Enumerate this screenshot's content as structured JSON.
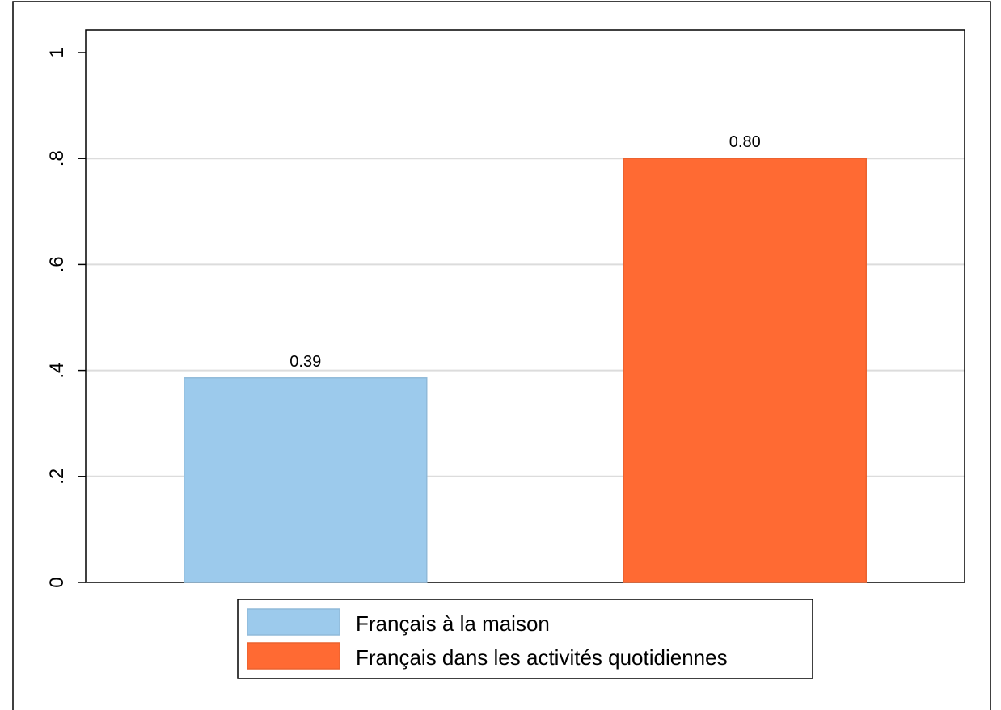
{
  "chart_data": {
    "type": "bar",
    "categories": [
      "Français à la maison",
      "Français dans les activités quotidiennes"
    ],
    "values": [
      0.386,
      0.8
    ],
    "data_labels": [
      "0.39",
      "0.80"
    ],
    "colors": [
      "#9CCAEC",
      "#FF6A33"
    ],
    "title": "",
    "xlabel": "",
    "ylabel": "",
    "ylim": [
      0,
      1
    ],
    "yticks": [
      0,
      0.2,
      0.4,
      0.6,
      0.8,
      1
    ],
    "ytick_labels": [
      "0",
      ".2",
      ".4",
      ".6",
      ".8",
      "1"
    ],
    "grid": true,
    "legend": {
      "position": "bottom",
      "entries": [
        "Français à la maison",
        "Français dans les activités quotidiennes"
      ]
    }
  }
}
